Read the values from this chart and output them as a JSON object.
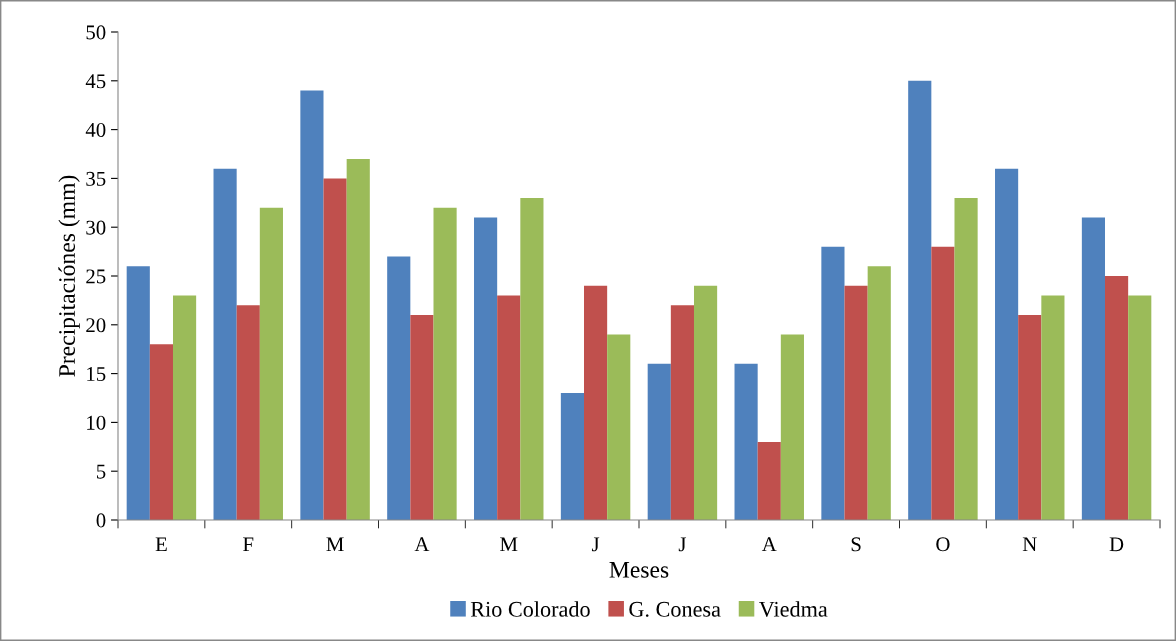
{
  "chart_data": {
    "type": "bar",
    "xlabel": "Meses",
    "ylabel": "Precipitaciónes (mm)",
    "categories": [
      "E",
      "F",
      "M",
      "A",
      "M",
      "J",
      "J",
      "A",
      "S",
      "O",
      "N",
      "D"
    ],
    "series": [
      {
        "name": "Rio Colorado",
        "color": "#4f81bd",
        "values": [
          26,
          36,
          44,
          27,
          31,
          13,
          16,
          16,
          28,
          45,
          36,
          31
        ]
      },
      {
        "name": "G. Conesa",
        "color": "#c0504d",
        "values": [
          18,
          22,
          35,
          21,
          23,
          24,
          22,
          8,
          24,
          28,
          21,
          25
        ]
      },
      {
        "name": "Viedma",
        "color": "#9bbb59",
        "values": [
          23,
          32,
          37,
          32,
          33,
          19,
          24,
          19,
          26,
          33,
          23,
          23
        ]
      }
    ],
    "ylim": [
      0,
      50
    ],
    "yticks": [
      0,
      5,
      10,
      15,
      20,
      25,
      30,
      35,
      40,
      45,
      50
    ],
    "grid": false,
    "legend": "bottom"
  }
}
